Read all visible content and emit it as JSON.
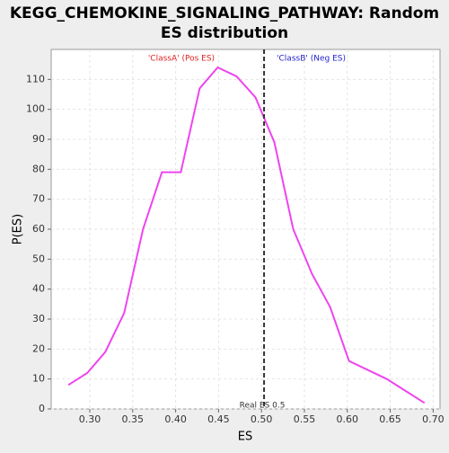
{
  "chart_data": {
    "type": "line",
    "title": "KEGG_CHEMOKINE_SIGNALING_PATHWAY: Random ES distribution",
    "xlabel": "ES",
    "ylabel": "P(ES)",
    "x": [
      0.275,
      0.297,
      0.318,
      0.34,
      0.362,
      0.384,
      0.406,
      0.428,
      0.449,
      0.471,
      0.493,
      0.515,
      0.537,
      0.559,
      0.58,
      0.602,
      0.646,
      0.668,
      0.69
    ],
    "series": [
      {
        "color": "#ee44ee",
        "values": [
          8,
          12,
          19,
          32,
          60,
          79,
          79,
          107,
          114,
          111,
          104,
          89,
          60,
          45,
          34,
          16,
          10,
          6,
          2
        ]
      }
    ],
    "xlim": [
      0.255,
      0.708
    ],
    "ylim": [
      0,
      120
    ],
    "xticks": [
      {
        "value": 0.3,
        "label": "0.30"
      },
      {
        "value": 0.35,
        "label": "0.35"
      },
      {
        "value": 0.4,
        "label": "0.40"
      },
      {
        "value": 0.45,
        "label": "0.45"
      },
      {
        "value": 0.5,
        "label": "0.50"
      },
      {
        "value": 0.55,
        "label": "0.55"
      },
      {
        "value": 0.6,
        "label": "0.60"
      },
      {
        "value": 0.65,
        "label": "0.65"
      },
      {
        "value": 0.7,
        "label": "0.70"
      }
    ],
    "yticks": [
      0,
      10,
      20,
      30,
      40,
      50,
      60,
      70,
      80,
      90,
      100,
      110
    ],
    "grid": true,
    "real_es": {
      "value": 0.503,
      "label": "Real ES 0.5"
    },
    "pos_label": "'ClassA' (Pos ES)",
    "pos_color": "#dd2222",
    "neg_label": "'ClassB' (Neg ES)",
    "neg_color": "#2222cc"
  }
}
